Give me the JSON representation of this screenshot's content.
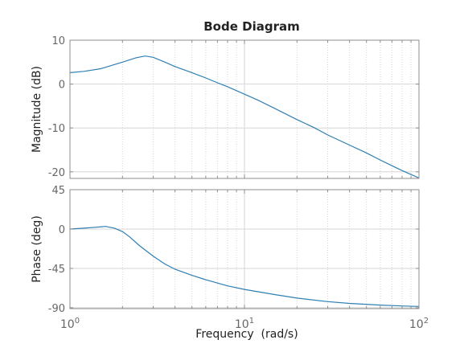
{
  "figure": {
    "title": "Bode Diagram",
    "xlabel": "Frequency  (rad/s)"
  },
  "colors": {
    "line": "#2f7fb3",
    "axis": "#8c8c8c",
    "grid": "#d6d6d6",
    "text": "#222222",
    "tick_text": "#666666"
  },
  "chart_data": [
    {
      "type": "line",
      "panel": "magnitude",
      "ylabel": "Magnitude (dB)",
      "x_scale": "log",
      "xlim": [
        1,
        100
      ],
      "ylim": [
        -21.5,
        10
      ],
      "yticks": [
        10,
        0,
        -10,
        -20
      ],
      "ytick_labels": [
        "10",
        "0",
        "-10",
        "-20"
      ],
      "grid": true,
      "series": [
        {
          "x": [
            1,
            1.2,
            1.5,
            2,
            2.4,
            2.7,
            3,
            3.5,
            4,
            5,
            6,
            7,
            8,
            10,
            12,
            15,
            20,
            25,
            30,
            40,
            50,
            60,
            70,
            80,
            90,
            100
          ],
          "y": [
            2.6,
            2.9,
            3.5,
            5.0,
            6.0,
            6.4,
            6.1,
            5.0,
            4.0,
            2.6,
            1.4,
            0.3,
            -0.6,
            -2.3,
            -3.7,
            -5.6,
            -8.1,
            -9.9,
            -11.6,
            -13.9,
            -15.7,
            -17.3,
            -18.6,
            -19.7,
            -20.6,
            -21.4
          ]
        }
      ]
    },
    {
      "type": "line",
      "panel": "phase",
      "ylabel": "Phase (deg)",
      "x_scale": "log",
      "xlim": [
        1,
        100
      ],
      "xticks": [
        1,
        10,
        100
      ],
      "xtick_labels": [
        {
          "base": "10",
          "exp": "0"
        },
        {
          "base": "10",
          "exp": "1"
        },
        {
          "base": "10",
          "exp": "2"
        }
      ],
      "ylim": [
        -91,
        45
      ],
      "yticks": [
        45,
        0,
        -45,
        -90
      ],
      "ytick_labels": [
        "45",
        "0",
        "-45",
        "-90"
      ],
      "grid": true,
      "series": [
        {
          "x": [
            1,
            1.2,
            1.4,
            1.6,
            1.8,
            2,
            2.2,
            2.5,
            3,
            3.5,
            4,
            5,
            6,
            8,
            10,
            15,
            20,
            30,
            40,
            60,
            80,
            100
          ],
          "y": [
            0,
            1,
            2,
            3,
            1,
            -3,
            -9,
            -19,
            -31,
            -40,
            -46,
            -53,
            -58,
            -65,
            -69,
            -75,
            -79,
            -83,
            -85,
            -87,
            -88,
            -88.5
          ]
        }
      ]
    }
  ]
}
